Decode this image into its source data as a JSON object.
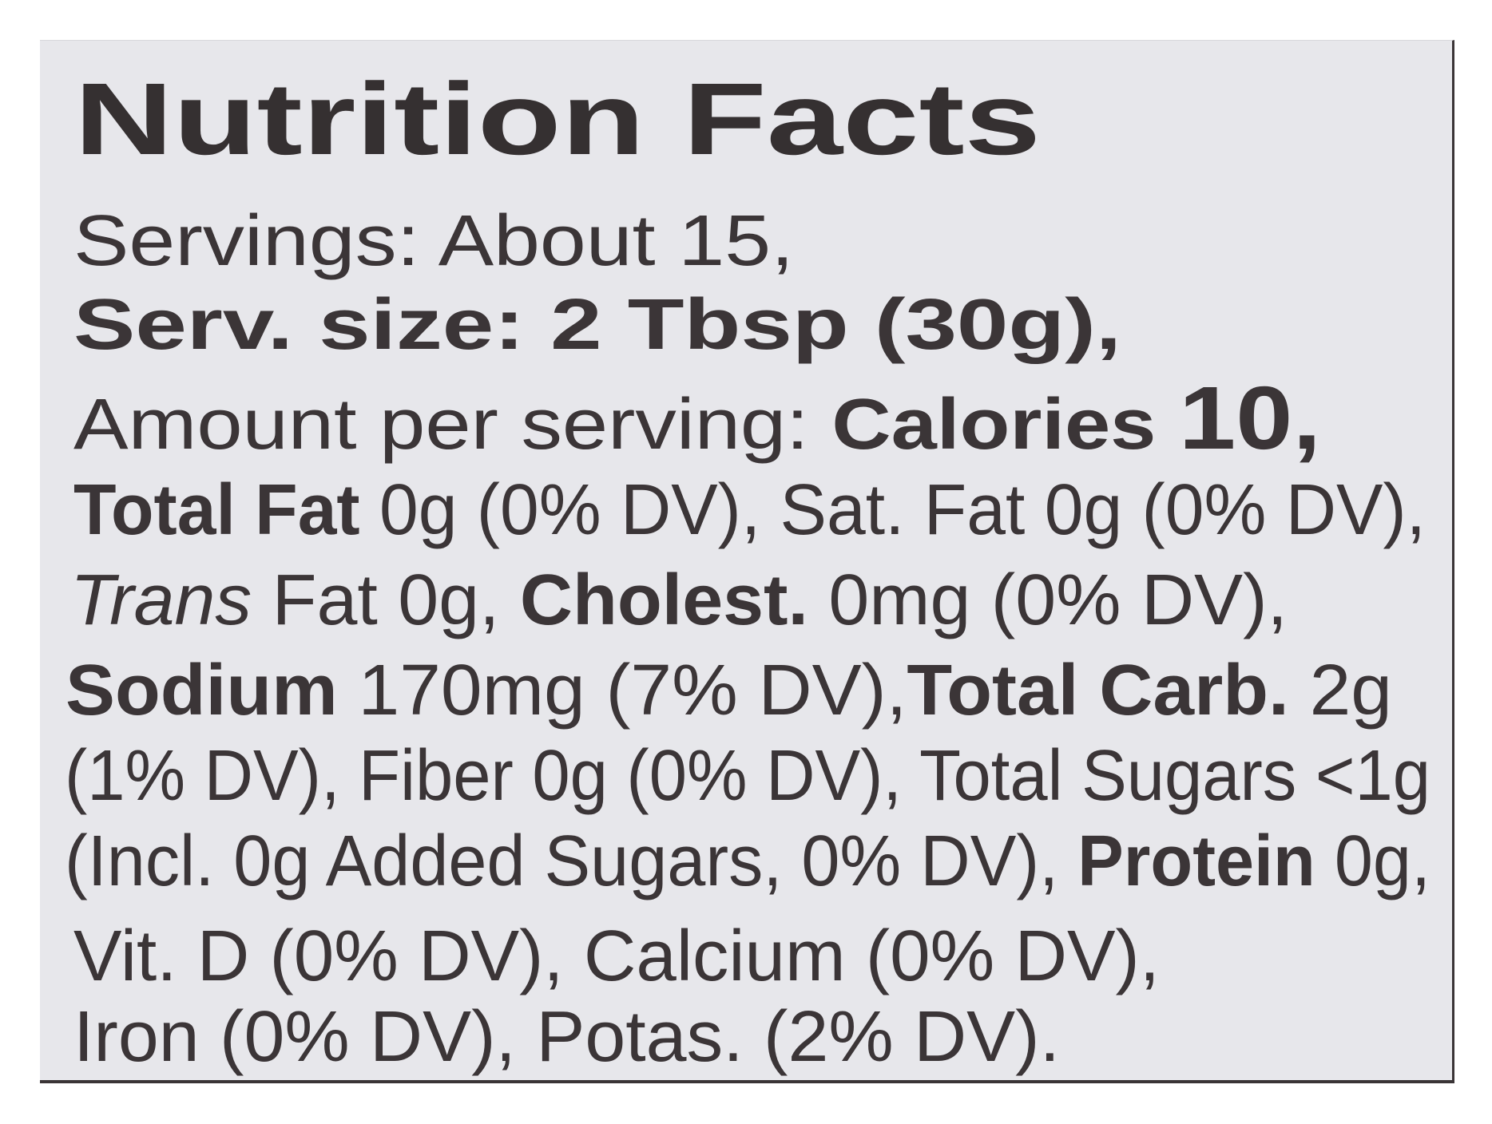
{
  "label": {
    "title": "Nutrition Facts",
    "servings": "Servings: About 15,",
    "serving_size": "Serv. size: 2 Tbsp (30g),",
    "amount_per_serving": "Amount per serving:",
    "calories_label": "Calories",
    "calories_value": "10,",
    "total_fat_label": "Total Fat",
    "total_fat_value": " 0g (0% DV),",
    "sat_fat": " Sat. Fat 0g (0% DV),",
    "trans_label": "Trans",
    "trans_value": " Fat 0g, ",
    "cholest_label": "Cholest.",
    "cholest_value": " 0mg (0% DV),",
    "sodium_label": "Sodium",
    "sodium_value": " 170mg (7% DV),",
    "total_carb_label": "Total Carb.",
    "total_carb_value": " 2g",
    "line_fiber": "(1% DV), Fiber 0g (0% DV), Total Sugars <1g",
    "added_sugars": "(Incl. 0g Added Sugars, 0% DV),",
    "protein_label": "Protein",
    "protein_value": " 0g,",
    "vitamins": "Vit. D (0% DV), Calcium (0% DV),",
    "minerals": "Iron (0% DV), Potas. (2% DV)."
  }
}
